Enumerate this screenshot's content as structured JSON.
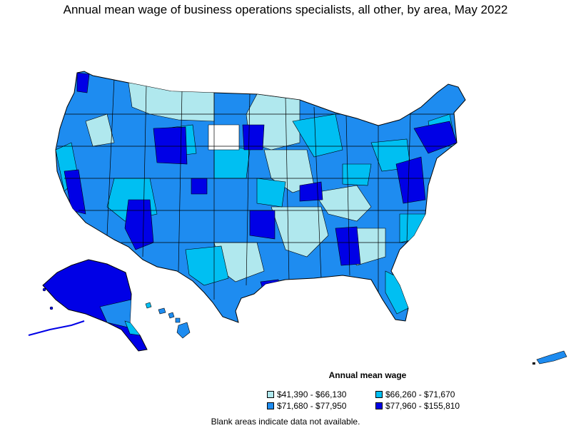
{
  "title": "Annual mean wage of business operations specialists, all other, by area, May 2022",
  "legend": {
    "title": "Annual mean wage",
    "items": [
      {
        "label": "$41,390 - $66,130",
        "color": "#b0e8ee"
      },
      {
        "label": "$66,260 - $71,670",
        "color": "#00bff2"
      },
      {
        "label": "$71,680 - $77,950",
        "color": "#1e8cf0"
      },
      {
        "label": "$77,960 - $155,810",
        "color": "#0000e6"
      }
    ]
  },
  "note": "Blank areas indicate data not available."
}
